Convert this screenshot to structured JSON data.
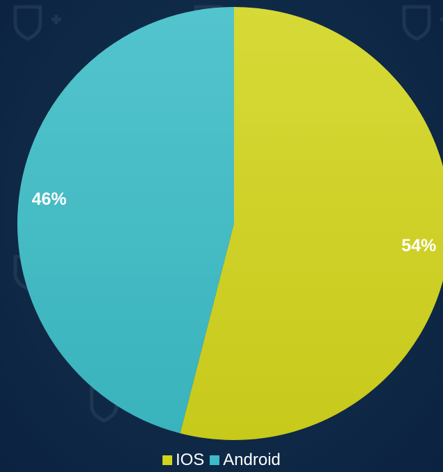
{
  "chart_data": {
    "type": "pie",
    "title": "",
    "slices": [
      {
        "name": "IOS",
        "value": 54,
        "label": "54%",
        "color": "#d1d41c"
      },
      {
        "name": "Android",
        "value": 46,
        "label": "46%",
        "color": "#3cbcc6"
      }
    ],
    "start_angle_deg": 0,
    "direction": "clockwise",
    "legend": {
      "position": "bottom"
    },
    "background_color": "#0f2a47"
  }
}
